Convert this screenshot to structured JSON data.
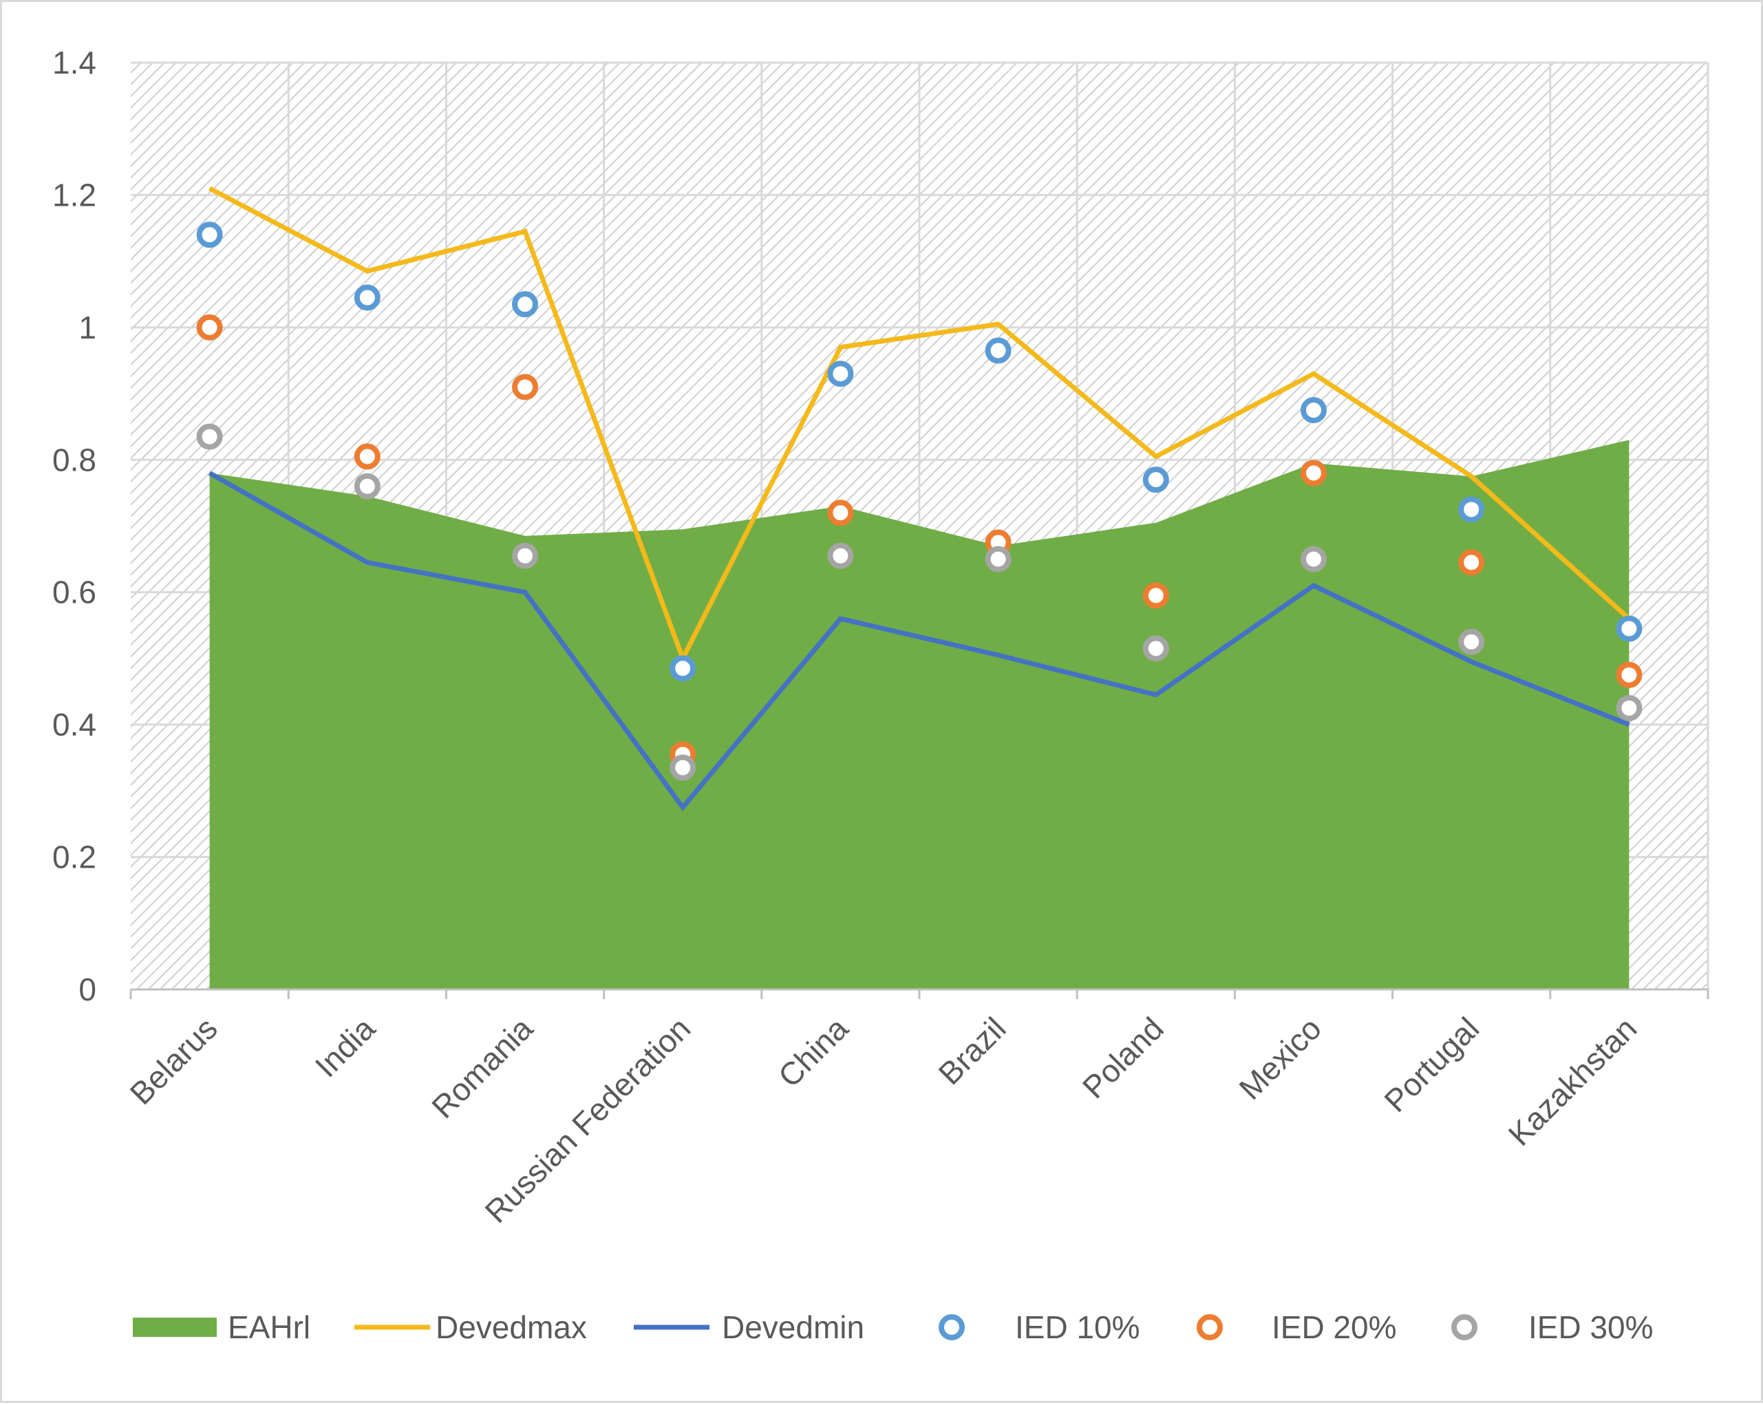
{
  "chart_data": {
    "type": "area",
    "title": "",
    "xlabel": "",
    "ylabel": "",
    "ylim": [
      0,
      1.4
    ],
    "yticks": [
      "0",
      "0.2",
      "0.4",
      "0.6",
      "0.8",
      "1",
      "1.2",
      "1.4"
    ],
    "grid": true,
    "legend_position": "bottom",
    "categories": [
      "Belarus",
      "India",
      "Romania",
      "Russian Federation",
      "China",
      "Brazil",
      "Poland",
      "Mexico",
      "Portugal",
      "Kazakhstan"
    ],
    "series": [
      {
        "name": "EAHrl",
        "kind": "area",
        "color": "#70ad47",
        "values": [
          0.78,
          0.745,
          0.685,
          0.695,
          0.73,
          0.67,
          0.705,
          0.795,
          0.775,
          0.83
        ]
      },
      {
        "name": "Devedmax",
        "kind": "line",
        "color": "#f4b91b",
        "values": [
          1.21,
          1.085,
          1.145,
          0.5,
          0.97,
          1.005,
          0.805,
          0.93,
          0.775,
          0.56
        ]
      },
      {
        "name": "Devedmin",
        "kind": "line",
        "color": "#4472c4",
        "values": [
          0.78,
          0.645,
          0.6,
          0.275,
          0.56,
          0.505,
          0.445,
          0.61,
          0.495,
          0.4
        ]
      },
      {
        "name": "IED 10%",
        "kind": "marker",
        "color": "#5b9bd5",
        "values": [
          1.14,
          1.045,
          1.035,
          0.485,
          0.93,
          0.965,
          0.77,
          0.875,
          0.725,
          0.545
        ]
      },
      {
        "name": "IED 20%",
        "kind": "marker",
        "color": "#ed7d31",
        "values": [
          1.0,
          0.805,
          0.91,
          0.355,
          0.72,
          0.675,
          0.595,
          0.78,
          0.645,
          0.475
        ]
      },
      {
        "name": "IED 30%",
        "kind": "marker",
        "color": "#a5a5a5",
        "values": [
          0.835,
          0.76,
          0.655,
          0.335,
          0.655,
          0.65,
          0.515,
          0.65,
          0.525,
          0.425
        ]
      }
    ]
  }
}
